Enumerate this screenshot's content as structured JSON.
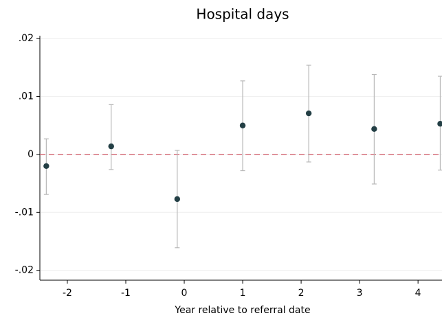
{
  "chart_data": {
    "type": "scatter",
    "title": "Hospital days",
    "xlabel": "Year relative to referral date",
    "x": [
      -2.36,
      -1.25,
      -0.12,
      1.0,
      2.13,
      3.25,
      4.38
    ],
    "series": [
      {
        "color": "#233f45",
        "bar_color": "#b8b8b8",
        "values": [
          -0.002,
          0.0014,
          -0.0077,
          0.005,
          0.0071,
          0.0044,
          0.0053
        ],
        "lower": [
          -0.0069,
          -0.0026,
          -0.0161,
          -0.0028,
          -0.0013,
          -0.0051,
          -0.0027
        ],
        "upper": [
          0.0027,
          0.0086,
          0.0007,
          0.0127,
          0.0154,
          0.0138,
          0.0135
        ]
      }
    ],
    "xlim": [
      -2.47,
      4.41
    ],
    "xticks": [
      -2,
      -1,
      0,
      1,
      2,
      3,
      4
    ],
    "ylim": [
      -0.0217,
      0.0205
    ],
    "yticks": [
      {
        "value": -0.02,
        "label": "-.02"
      },
      {
        "value": -0.01,
        "label": "-.01"
      },
      0,
      {
        "value": 0.01,
        "label": ".01"
      },
      {
        "value": 0.02,
        "label": ".02"
      }
    ],
    "grid": true,
    "refline": 0,
    "refline_color": "#d0606e"
  }
}
